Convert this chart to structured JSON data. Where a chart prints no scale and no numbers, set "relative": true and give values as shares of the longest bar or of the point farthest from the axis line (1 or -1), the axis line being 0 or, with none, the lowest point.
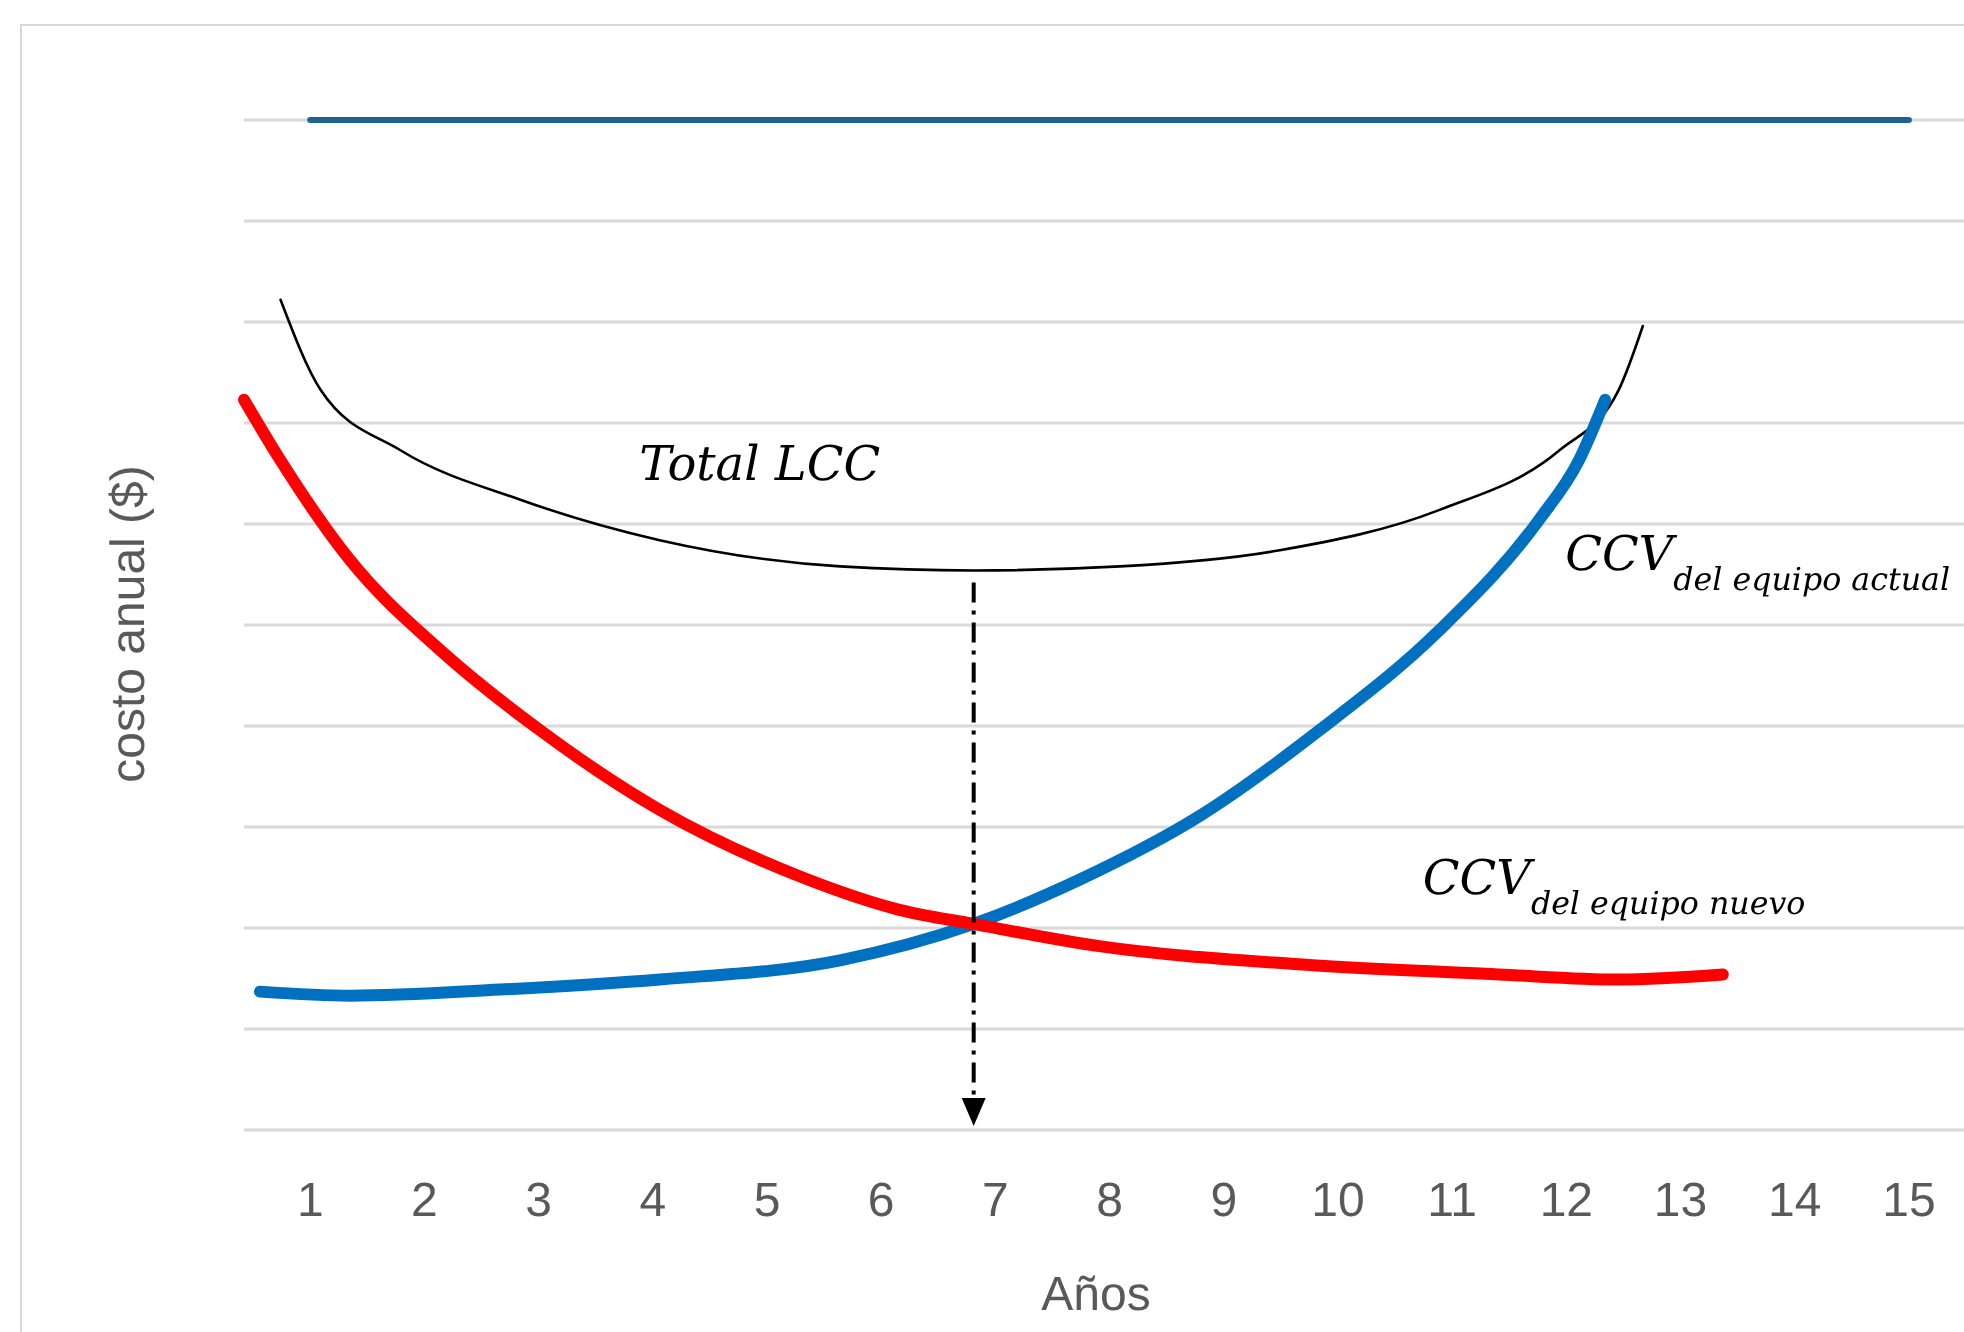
{
  "chart_data": {
    "type": "line",
    "xlabel": "Años",
    "ylabel": "costo anual ($)",
    "relative": true,
    "grid": "y",
    "xlim": [
      0.42,
      15.5
    ],
    "xticks": [
      1,
      2,
      3,
      4,
      5,
      6,
      7,
      8,
      9,
      10,
      11,
      12,
      13,
      14,
      15
    ],
    "series": [
      {
        "color": "#1f6391",
        "x": [
          1,
          15
        ],
        "values": [
          1,
          1
        ]
      },
      {
        "name": "Total LCC",
        "color": "#000000",
        "x": [
          0.74,
          1.09,
          1.79,
          2.84,
          4.06,
          5.64,
          6.81,
          8.09,
          9.49,
          10.89,
          11.94,
          12.46,
          12.67
        ],
        "values": [
          0.822,
          0.733,
          0.673,
          0.624,
          0.584,
          0.558,
          0.554,
          0.558,
          0.574,
          0.614,
          0.673,
          0.733,
          0.796
        ]
      },
      {
        "name": "CCV$_{del equipo actual}$",
        "color": "#0070c0",
        "x": [
          0.56,
          1.35,
          2.66,
          4.06,
          5.64,
          6.81,
          7.74,
          8.79,
          9.84,
          10.89,
          11.76,
          12.11,
          12.34
        ],
        "values": [
          0.137,
          0.133,
          0.139,
          0.149,
          0.168,
          0.204,
          0.248,
          0.311,
          0.396,
          0.495,
          0.604,
          0.663,
          0.723
        ]
      },
      {
        "name": "CCV$_{del equipo nuevo}$",
        "color": "#ff0000",
        "x": [
          0.42,
          0.74,
          1.35,
          2.14,
          3.01,
          4.06,
          5.29,
          6.16,
          6.81,
          7.91,
          9.66,
          11.41,
          12.46,
          13.37
        ],
        "values": [
          0.723,
          0.663,
          0.564,
          0.475,
          0.396,
          0.317,
          0.251,
          0.218,
          0.204,
          0.182,
          0.164,
          0.154,
          0.149,
          0.154
        ]
      }
    ]
  }
}
